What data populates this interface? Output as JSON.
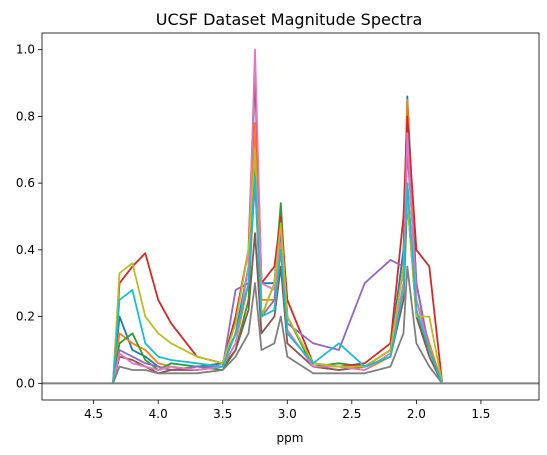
{
  "chart_data": {
    "type": "line",
    "title": "UCSF Dataset Magnitude Spectra",
    "xlabel": "ppm",
    "ylabel": "",
    "x_inverted": true,
    "xlim": [
      4.9,
      1.05
    ],
    "ylim": [
      -0.05,
      1.05
    ],
    "x_ticks": [
      4.5,
      4.0,
      3.5,
      3.0,
      2.5,
      2.0,
      1.5
    ],
    "x_tick_labels": [
      "4.5",
      "4.0",
      "3.5",
      "3.0",
      "2.5",
      "2.0",
      "1.5"
    ],
    "y_ticks": [
      0.0,
      0.2,
      0.4,
      0.6,
      0.8,
      1.0
    ],
    "y_tick_labels": [
      "0.0",
      "0.2",
      "0.4",
      "0.6",
      "0.8",
      "1.0"
    ],
    "grid": false,
    "legend": "none",
    "x_range_data": [
      4.35,
      1.8
    ],
    "baseline": {
      "y": 0.0,
      "color": "#808080"
    },
    "palette": [
      "#1f77b4",
      "#ff7f0e",
      "#2ca02c",
      "#d62728",
      "#9467bd",
      "#8c564b",
      "#e377c2",
      "#7f7f7f",
      "#bcbd22",
      "#17becf"
    ],
    "series": [
      {
        "x": [
          4.35,
          4.3,
          4.2,
          4.1,
          4.0,
          3.9,
          3.7,
          3.5,
          3.4,
          3.3,
          3.25,
          3.2,
          3.1,
          3.05,
          3.0,
          2.8,
          2.6,
          2.4,
          2.2,
          2.1,
          2.07,
          2.0,
          1.9,
          1.8
        ],
        "y": [
          0.0,
          0.2,
          0.1,
          0.08,
          0.05,
          0.04,
          0.05,
          0.06,
          0.15,
          0.35,
          0.93,
          0.3,
          0.3,
          0.5,
          0.2,
          0.05,
          0.04,
          0.05,
          0.1,
          0.4,
          0.86,
          0.3,
          0.1,
          0.0
        ]
      },
      {
        "x": [
          4.35,
          4.3,
          4.2,
          4.1,
          4.0,
          3.9,
          3.7,
          3.5,
          3.4,
          3.3,
          3.25,
          3.2,
          3.1,
          3.05,
          3.0,
          2.8,
          2.6,
          2.4,
          2.2,
          2.1,
          2.07,
          2.0,
          1.9,
          1.8
        ],
        "y": [
          0.0,
          0.15,
          0.12,
          0.1,
          0.06,
          0.05,
          0.04,
          0.05,
          0.12,
          0.3,
          0.78,
          0.25,
          0.25,
          0.4,
          0.15,
          0.06,
          0.05,
          0.04,
          0.08,
          0.3,
          0.85,
          0.25,
          0.12,
          0.0
        ]
      },
      {
        "x": [
          4.35,
          4.3,
          4.2,
          4.1,
          4.0,
          3.9,
          3.7,
          3.5,
          3.4,
          3.3,
          3.25,
          3.2,
          3.1,
          3.05,
          3.0,
          2.8,
          2.6,
          2.4,
          2.2,
          2.1,
          2.07,
          2.0,
          1.9,
          1.8
        ],
        "y": [
          0.0,
          0.12,
          0.15,
          0.07,
          0.04,
          0.06,
          0.05,
          0.04,
          0.1,
          0.25,
          0.66,
          0.2,
          0.3,
          0.54,
          0.2,
          0.05,
          0.06,
          0.05,
          0.1,
          0.35,
          0.6,
          0.2,
          0.1,
          0.0
        ]
      },
      {
        "x": [
          4.35,
          4.3,
          4.2,
          4.1,
          4.0,
          3.9,
          3.7,
          3.5,
          3.4,
          3.3,
          3.25,
          3.2,
          3.1,
          3.05,
          3.0,
          2.8,
          2.6,
          2.4,
          2.2,
          2.1,
          2.07,
          2.0,
          1.9,
          1.8
        ],
        "y": [
          0.0,
          0.3,
          0.35,
          0.39,
          0.25,
          0.18,
          0.08,
          0.06,
          0.2,
          0.4,
          0.95,
          0.3,
          0.35,
          0.5,
          0.25,
          0.06,
          0.05,
          0.06,
          0.12,
          0.5,
          0.8,
          0.4,
          0.35,
          0.0
        ]
      },
      {
        "x": [
          4.35,
          4.3,
          4.2,
          4.1,
          4.0,
          3.9,
          3.7,
          3.5,
          3.4,
          3.3,
          3.25,
          3.2,
          3.1,
          3.05,
          3.0,
          2.8,
          2.6,
          2.4,
          2.2,
          2.1,
          2.07,
          2.0,
          1.9,
          1.8
        ],
        "y": [
          0.0,
          0.1,
          0.08,
          0.06,
          0.05,
          0.04,
          0.05,
          0.05,
          0.28,
          0.3,
          0.6,
          0.2,
          0.25,
          0.45,
          0.18,
          0.12,
          0.1,
          0.3,
          0.37,
          0.35,
          0.7,
          0.3,
          0.1,
          0.0
        ]
      },
      {
        "x": [
          4.35,
          4.3,
          4.2,
          4.1,
          4.0,
          3.9,
          3.7,
          3.5,
          3.4,
          3.3,
          3.25,
          3.2,
          3.1,
          3.05,
          3.0,
          2.8,
          2.6,
          2.4,
          2.2,
          2.1,
          2.07,
          2.0,
          1.9,
          1.8
        ],
        "y": [
          0.0,
          0.08,
          0.07,
          0.05,
          0.03,
          0.04,
          0.04,
          0.05,
          0.1,
          0.22,
          0.45,
          0.15,
          0.2,
          0.35,
          0.12,
          0.05,
          0.04,
          0.05,
          0.08,
          0.25,
          0.55,
          0.2,
          0.08,
          0.0
        ]
      },
      {
        "x": [
          4.35,
          4.3,
          4.2,
          4.1,
          4.0,
          3.9,
          3.7,
          3.5,
          3.4,
          3.3,
          3.25,
          3.2,
          3.1,
          3.05,
          3.0,
          2.8,
          2.6,
          2.4,
          2.2,
          2.1,
          2.07,
          2.0,
          1.9,
          1.8
        ],
        "y": [
          0.0,
          0.09,
          0.06,
          0.05,
          0.04,
          0.05,
          0.04,
          0.05,
          0.12,
          0.35,
          1.0,
          0.3,
          0.28,
          0.42,
          0.16,
          0.05,
          0.05,
          0.04,
          0.09,
          0.3,
          0.75,
          0.25,
          0.1,
          0.0
        ]
      },
      {
        "x": [
          4.35,
          4.3,
          4.2,
          4.1,
          4.0,
          3.9,
          3.7,
          3.5,
          3.4,
          3.3,
          3.25,
          3.2,
          3.1,
          3.05,
          3.0,
          2.8,
          2.6,
          2.4,
          2.2,
          2.1,
          2.07,
          2.0,
          1.9,
          1.8
        ],
        "y": [
          0.0,
          0.05,
          0.04,
          0.04,
          0.03,
          0.03,
          0.03,
          0.04,
          0.08,
          0.15,
          0.3,
          0.1,
          0.12,
          0.2,
          0.08,
          0.03,
          0.03,
          0.03,
          0.05,
          0.15,
          0.35,
          0.12,
          0.05,
          0.0
        ]
      },
      {
        "x": [
          4.35,
          4.3,
          4.2,
          4.1,
          4.0,
          3.9,
          3.7,
          3.5,
          3.4,
          3.3,
          3.25,
          3.2,
          3.1,
          3.05,
          3.0,
          2.8,
          2.6,
          2.4,
          2.2,
          2.1,
          2.07,
          2.0,
          1.9,
          1.8
        ],
        "y": [
          0.0,
          0.33,
          0.36,
          0.2,
          0.15,
          0.12,
          0.08,
          0.06,
          0.18,
          0.4,
          0.7,
          0.2,
          0.3,
          0.48,
          0.2,
          0.06,
          0.05,
          0.05,
          0.1,
          0.35,
          0.55,
          0.2,
          0.2,
          0.0
        ]
      },
      {
        "x": [
          4.35,
          4.3,
          4.2,
          4.1,
          4.0,
          3.9,
          3.7,
          3.5,
          3.4,
          3.3,
          3.25,
          3.2,
          3.1,
          3.05,
          3.0,
          2.8,
          2.6,
          2.4,
          2.2,
          2.1,
          2.07,
          2.0,
          1.9,
          1.8
        ],
        "y": [
          0.0,
          0.25,
          0.28,
          0.12,
          0.08,
          0.07,
          0.06,
          0.05,
          0.15,
          0.3,
          0.62,
          0.2,
          0.22,
          0.4,
          0.15,
          0.06,
          0.12,
          0.05,
          0.08,
          0.28,
          0.6,
          0.22,
          0.1,
          0.0
        ]
      }
    ]
  }
}
